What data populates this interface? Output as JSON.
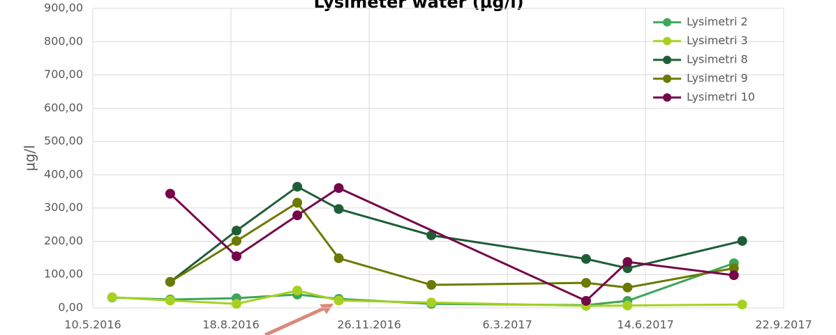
{
  "chart_data": {
    "type": "line",
    "title": "Lysimeter water (µg/l)",
    "y_label": "µg/l",
    "xlim": [
      "2016-05-10",
      "2017-09-22"
    ],
    "xticks": [
      {
        "value": "2016-05-10",
        "label": "10.5.2016"
      },
      {
        "value": "2016-08-18",
        "label": "18.8.2016"
      },
      {
        "value": "2016-11-26",
        "label": "26.11.2016"
      },
      {
        "value": "2017-03-06",
        "label": "6.3.2017"
      },
      {
        "value": "2017-06-14",
        "label": "14.6.2017"
      },
      {
        "value": "2017-09-22",
        "label": "22.9.2017"
      }
    ],
    "ylim": [
      0,
      900
    ],
    "yticks": [
      {
        "value": 0,
        "label": "0,00"
      },
      {
        "value": 100,
        "label": "100,00"
      },
      {
        "value": 200,
        "label": "200,00"
      },
      {
        "value": 300,
        "label": "300,00"
      },
      {
        "value": 400,
        "label": "400,00"
      },
      {
        "value": 500,
        "label": "500,00"
      },
      {
        "value": 600,
        "label": "600,00"
      },
      {
        "value": 700,
        "label": "700,00"
      },
      {
        "value": 800,
        "label": "800,00"
      },
      {
        "value": 900,
        "label": "900,00"
      }
    ],
    "grid": true,
    "legend": "top-right",
    "series": [
      {
        "name": "Lysimetri 2",
        "color": "#3ea55a",
        "x": [
          "2016-05-24",
          "2016-07-05",
          "2016-08-22",
          "2016-10-05",
          "2016-11-04",
          "2017-01-10",
          "2017-05-02",
          "2017-06-01",
          "2017-08-17"
        ],
        "values": [
          31,
          25,
          29,
          40,
          27,
          12,
          8,
          21,
          134
        ]
      },
      {
        "name": "Lysimetri 3",
        "color": "#a6d120",
        "x": [
          "2016-05-24",
          "2016-07-05",
          "2016-08-22",
          "2016-10-05",
          "2016-11-04",
          "2017-01-10",
          "2017-05-02",
          "2017-06-01",
          "2017-08-23"
        ],
        "values": [
          32,
          22,
          12,
          52,
          22,
          16,
          6,
          7,
          10
        ]
      },
      {
        "name": "Lysimetri 8",
        "color": "#1e5e36",
        "x": [
          "2016-07-05",
          "2016-08-22",
          "2016-10-05",
          "2016-11-04",
          "2017-01-10",
          "2017-05-02",
          "2017-06-01",
          "2017-08-23"
        ],
        "values": [
          78,
          232,
          364,
          297,
          218,
          147,
          119,
          201
        ]
      },
      {
        "name": "Lysimetri 9",
        "color": "#6b7a00",
        "x": [
          "2016-07-05",
          "2016-08-22",
          "2016-10-05",
          "2016-11-04",
          "2017-01-10",
          "2017-05-02",
          "2017-06-01",
          "2017-08-17"
        ],
        "values": [
          78,
          201,
          316,
          149,
          69,
          75,
          61,
          119
        ]
      },
      {
        "name": "Lysimetri 10",
        "color": "#76064a",
        "x": [
          "2016-07-05",
          "2016-08-22",
          "2016-10-05",
          "2016-11-04",
          "2017-05-02",
          "2017-06-01",
          "2017-08-17"
        ],
        "values": [
          343,
          155,
          278,
          360,
          21,
          138,
          98
        ]
      }
    ]
  }
}
